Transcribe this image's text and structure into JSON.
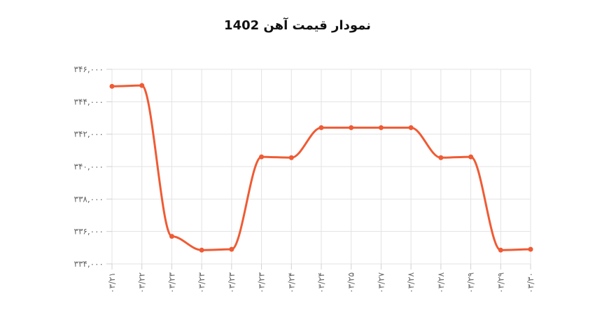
{
  "chart_data": {
    "type": "line",
    "title": "نمودار قیمت آهن 1402",
    "xlabel": "",
    "ylabel": "",
    "categories": [
      "۰۳/۲۱",
      "۰۳/۲۲",
      "۰۳/۲۳",
      "۰۳/۲۳",
      "۰۳/۲۳",
      "۰۳/۲۳",
      "۰۳/۲۴",
      "۰۳/۲۴",
      "۰۳/۲۵",
      "۰۳/۲۷",
      "۰۳/۲۸",
      "۰۳/۲۸",
      "۰۳/۲۹",
      "۰۳/۲۹",
      "۰۳/۳۰"
    ],
    "values": [
      344950,
      345000,
      335700,
      334850,
      334900,
      340600,
      340550,
      342400,
      342400,
      342400,
      342400,
      340550,
      340600,
      334850,
      334900
    ],
    "ylim": [
      334000,
      346000
    ],
    "yticks": [
      334000,
      336000,
      338000,
      340000,
      342000,
      344000,
      346000
    ],
    "ytick_labels": [
      "۳۳۴,۰۰۰",
      "۳۳۶,۰۰۰",
      "۳۳۸,۰۰۰",
      "۳۴۰,۰۰۰",
      "۳۴۲,۰۰۰",
      "۳۴۴,۰۰۰",
      "۳۴۶,۰۰۰"
    ],
    "grid": true,
    "color": "#ef5b34"
  }
}
